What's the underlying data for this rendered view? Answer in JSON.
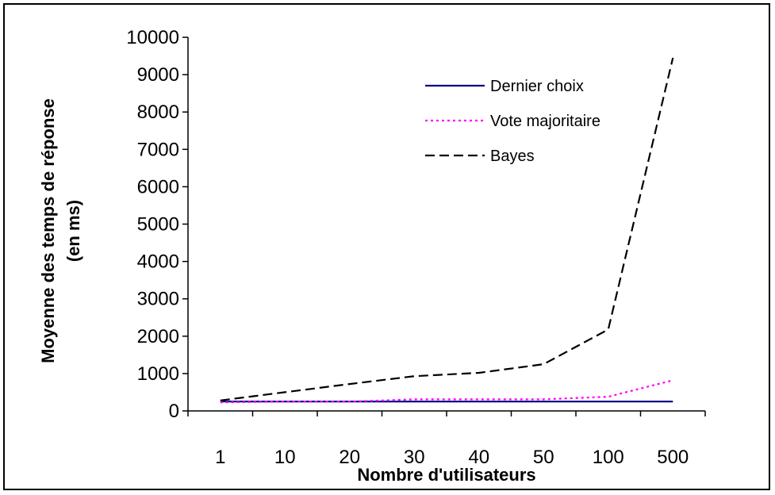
{
  "chart_data": {
    "type": "line",
    "categories": [
      "1",
      "10",
      "20",
      "30",
      "40",
      "50",
      "100",
      "500"
    ],
    "xlabel": "Nombre d'utilisateurs",
    "ylabel_line1": "Moyenne des temps de réponse",
    "ylabel_line2": "(en ms)",
    "ylim": [
      0,
      10000
    ],
    "yticks": [
      0,
      1000,
      2000,
      3000,
      4000,
      5000,
      6000,
      7000,
      8000,
      9000,
      10000
    ],
    "grid": false,
    "legend_position": "top-right",
    "series": [
      {
        "name": "Dernier choix",
        "values": [
          250,
          250,
          250,
          250,
          250,
          250,
          250,
          250
        ],
        "color": "#000080",
        "dash": "solid"
      },
      {
        "name": "Vote majoritaire",
        "values": [
          230,
          250,
          250,
          310,
          310,
          310,
          380,
          820
        ],
        "color": "#ff00ff",
        "dash": "dotted"
      },
      {
        "name": "Bayes",
        "values": [
          280,
          500,
          720,
          930,
          1020,
          1250,
          2180,
          9450
        ],
        "color": "#000000",
        "dash": "dashed"
      }
    ]
  }
}
